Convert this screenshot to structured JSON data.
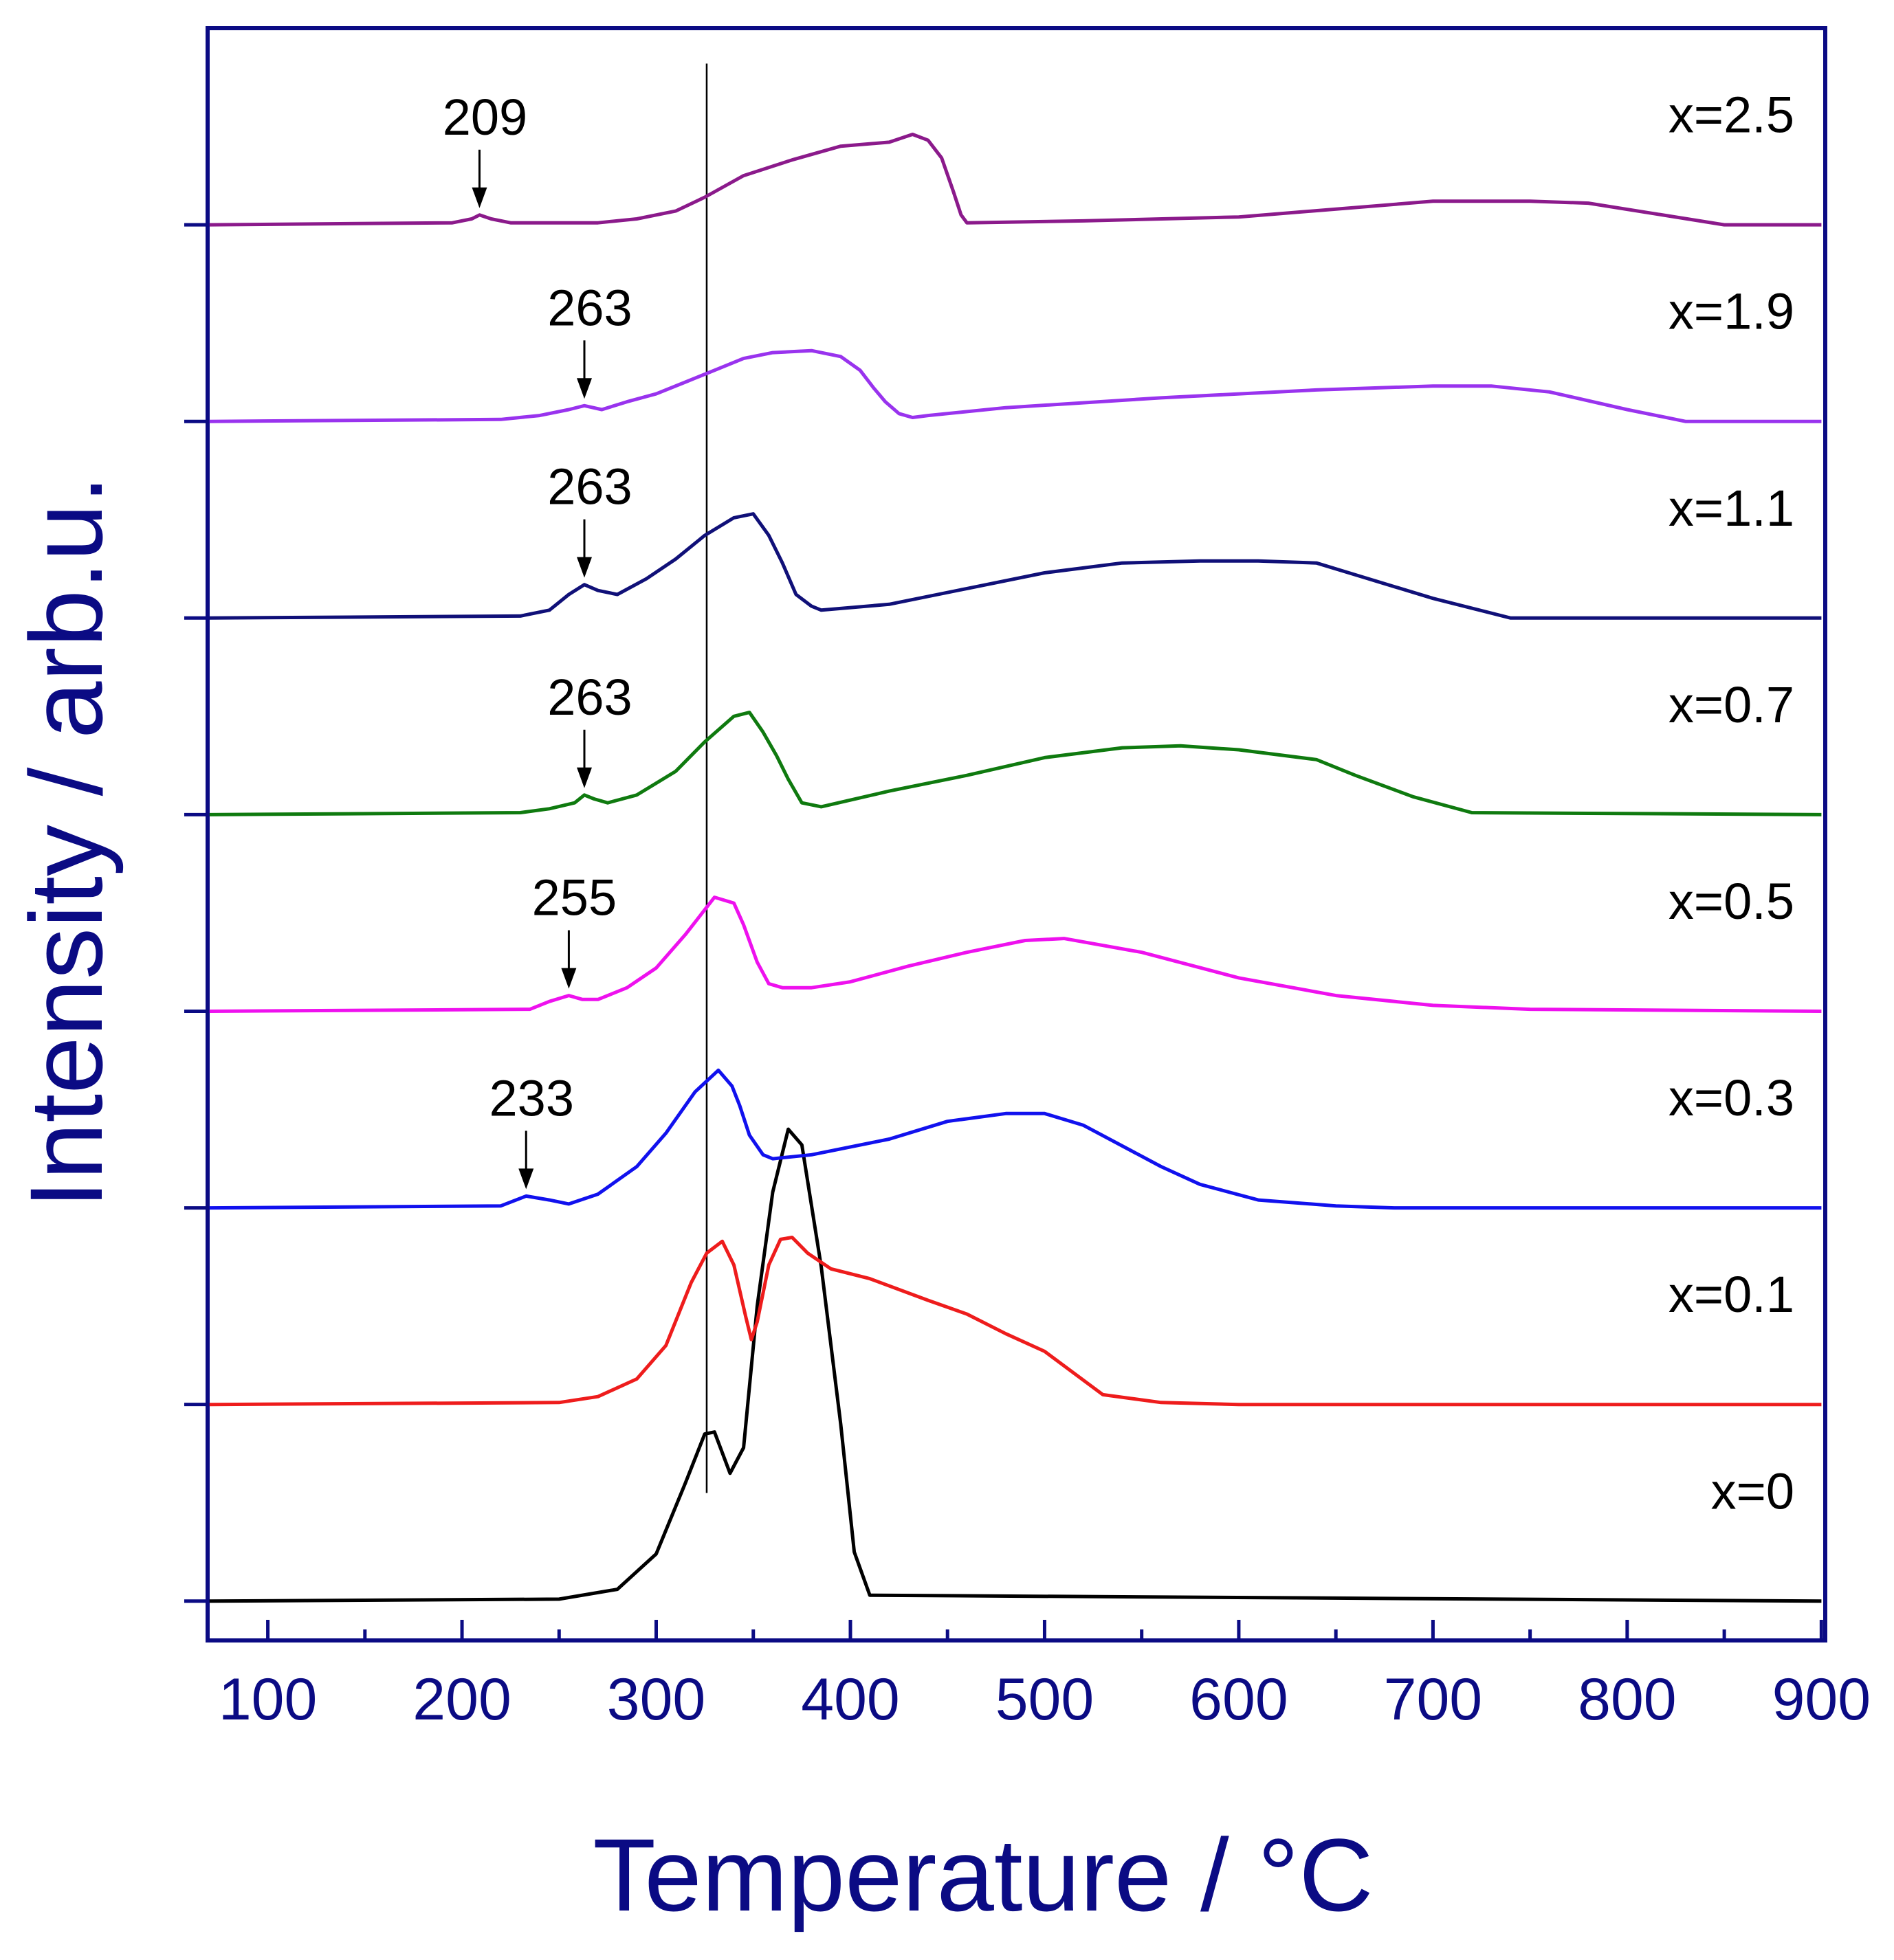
{
  "chart_data": {
    "type": "line",
    "title": "",
    "xlabel": "Temperature / °C",
    "ylabel": "Intensity / arb.u.",
    "xlim": [
      69,
      902
    ],
    "xticks": [
      100,
      200,
      300,
      400,
      500,
      600,
      700,
      800,
      900
    ],
    "xtick_labels": [
      "100",
      "200",
      "300",
      "400",
      "500",
      "600",
      "700",
      "800",
      "900"
    ],
    "y_unit_note": "intensity in offset arb. units; each series shifted by 1 unit",
    "ylim": [
      -0.2,
      8.0
    ],
    "grid": false,
    "vertical_reference_line": 326,
    "colors": {
      "axis": "#0b0b84",
      "frame": "#0b0b84"
    },
    "series": [
      {
        "name": "x=0",
        "color": "#000000",
        "offset": 0,
        "x": [
          70,
          250,
          280,
          300,
          315,
          325,
          330,
          338,
          345,
          352,
          360,
          368,
          375,
          385,
          395,
          402,
          410,
          900
        ],
        "y": [
          0,
          0.01,
          0.06,
          0.24,
          0.6,
          0.85,
          0.86,
          0.65,
          0.78,
          1.5,
          2.08,
          2.4,
          2.32,
          1.7,
          0.9,
          0.25,
          0.03,
          0
        ]
      },
      {
        "name": "x=0.1",
        "color": "#ee1c1c",
        "offset": 1,
        "x": [
          70,
          250,
          270,
          290,
          305,
          318,
          326,
          334,
          340,
          346,
          349,
          352,
          358,
          364,
          370,
          378,
          390,
          410,
          440,
          460,
          480,
          500,
          530,
          560,
          600,
          900
        ],
        "y": [
          0,
          0.01,
          0.04,
          0.13,
          0.3,
          0.62,
          0.77,
          0.83,
          0.71,
          0.45,
          0.33,
          0.42,
          0.71,
          0.84,
          0.85,
          0.77,
          0.69,
          0.64,
          0.53,
          0.46,
          0.36,
          0.27,
          0.05,
          0.01,
          0,
          0
        ]
      },
      {
        "name": "x=0.3",
        "color": "#1111ee",
        "offset": 2,
        "x": [
          70,
          220,
          233,
          245,
          255,
          270,
          290,
          305,
          320,
          332,
          339,
          343,
          348,
          355,
          360,
          380,
          420,
          450,
          480,
          500,
          520,
          560,
          580,
          610,
          650,
          680,
          900
        ],
        "y": [
          0,
          0.01,
          0.06,
          0.04,
          0.02,
          0.07,
          0.21,
          0.38,
          0.59,
          0.7,
          0.62,
          0.52,
          0.37,
          0.27,
          0.25,
          0.27,
          0.35,
          0.44,
          0.48,
          0.48,
          0.42,
          0.21,
          0.12,
          0.04,
          0.01,
          0,
          0
        ]
      },
      {
        "name": "x=0.5",
        "color": "#ee11ee",
        "offset": 3,
        "x": [
          70,
          235,
          245,
          255,
          262,
          270,
          285,
          300,
          315,
          330,
          340,
          345,
          352,
          358,
          365,
          380,
          400,
          430,
          460,
          490,
          510,
          550,
          600,
          650,
          700,
          750,
          900
        ],
        "y": [
          0,
          0.01,
          0.05,
          0.08,
          0.06,
          0.06,
          0.12,
          0.22,
          0.39,
          0.58,
          0.55,
          0.44,
          0.25,
          0.14,
          0.12,
          0.12,
          0.15,
          0.23,
          0.3,
          0.36,
          0.37,
          0.3,
          0.17,
          0.08,
          0.03,
          0.01,
          0
        ]
      },
      {
        "name": "x=0.7",
        "color": "#0f7a0f",
        "offset": 4,
        "x": [
          70,
          230,
          245,
          258,
          263,
          268,
          275,
          290,
          310,
          325,
          340,
          348,
          355,
          362,
          368,
          375,
          385,
          420,
          460,
          500,
          540,
          570,
          600,
          640,
          660,
          690,
          720,
          900
        ],
        "y": [
          0,
          0.01,
          0.03,
          0.06,
          0.1,
          0.08,
          0.06,
          0.1,
          0.22,
          0.37,
          0.5,
          0.52,
          0.42,
          0.3,
          0.18,
          0.06,
          0.04,
          0.12,
          0.2,
          0.29,
          0.34,
          0.35,
          0.33,
          0.28,
          0.2,
          0.09,
          0.01,
          0
        ]
      },
      {
        "name": "x=1.1",
        "color": "#101078",
        "offset": 5,
        "x": [
          70,
          230,
          245,
          255,
          263,
          270,
          280,
          295,
          310,
          325,
          340,
          350,
          358,
          365,
          372,
          380,
          385,
          420,
          460,
          500,
          540,
          580,
          610,
          640,
          660,
          700,
          740,
          900
        ],
        "y": [
          0,
          0.01,
          0.04,
          0.12,
          0.17,
          0.14,
          0.12,
          0.2,
          0.3,
          0.42,
          0.51,
          0.53,
          0.42,
          0.28,
          0.12,
          0.06,
          0.04,
          0.07,
          0.15,
          0.23,
          0.28,
          0.29,
          0.29,
          0.28,
          0.22,
          0.1,
          0,
          0
        ]
      },
      {
        "name": "x=1.9",
        "color": "#9933ee",
        "offset": 6,
        "x": [
          70,
          220,
          240,
          255,
          263,
          272,
          285,
          300,
          315,
          330,
          345,
          360,
          380,
          395,
          405,
          412,
          418,
          425,
          432,
          440,
          480,
          560,
          640,
          700,
          730,
          760,
          800,
          830,
          900
        ],
        "y": [
          0,
          0.01,
          0.03,
          0.06,
          0.08,
          0.06,
          0.1,
          0.14,
          0.2,
          0.26,
          0.32,
          0.35,
          0.36,
          0.33,
          0.26,
          0.17,
          0.1,
          0.04,
          0.02,
          0.03,
          0.07,
          0.12,
          0.16,
          0.18,
          0.18,
          0.15,
          0.06,
          0,
          0
        ]
      },
      {
        "name": "x=2.5",
        "color": "#8b1a8b",
        "offset": 7,
        "x": [
          70,
          195,
          205,
          209,
          215,
          225,
          270,
          290,
          310,
          325,
          345,
          370,
          395,
          420,
          432,
          440,
          447,
          453,
          457,
          460,
          520,
          600,
          700,
          750,
          780,
          850,
          900
        ],
        "y": [
          0,
          0.01,
          0.03,
          0.05,
          0.03,
          0.01,
          0.01,
          0.03,
          0.07,
          0.14,
          0.25,
          0.33,
          0.4,
          0.42,
          0.46,
          0.43,
          0.34,
          0.17,
          0.05,
          0.01,
          0.02,
          0.04,
          0.12,
          0.12,
          0.11,
          0,
          0
        ]
      }
    ],
    "annotations": [
      {
        "series": "x=2.5",
        "label": "209",
        "x": 209
      },
      {
        "series": "x=1.9",
        "label": "263",
        "x": 263
      },
      {
        "series": "x=1.1",
        "label": "263",
        "x": 263
      },
      {
        "series": "x=0.7",
        "label": "263",
        "x": 263
      },
      {
        "series": "x=0.5",
        "label": "255",
        "x": 255
      },
      {
        "series": "x=0.3",
        "label": "233",
        "x": 233
      }
    ]
  }
}
